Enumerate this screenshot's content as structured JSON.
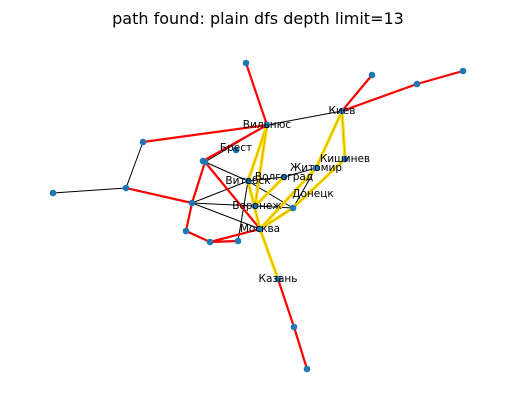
{
  "title": "path found: plain dfs depth limit=13",
  "colors": {
    "node": "#1f77b4",
    "edge": "#000000",
    "path_edge": "#ff0000",
    "highlight_edge": "#ffdd00",
    "background": "#ffffff"
  },
  "nodes": [
    {
      "id": "vilnius",
      "label": "Вильнюс"
    },
    {
      "id": "brest",
      "label": "Брест"
    },
    {
      "id": "vitebsk",
      "label": "Витебск"
    },
    {
      "id": "volgograd",
      "label": "Волгоград"
    },
    {
      "id": "voronezh",
      "label": "Воронеж"
    },
    {
      "id": "moskva",
      "label": "Москва"
    },
    {
      "id": "kazan",
      "label": "Казань"
    },
    {
      "id": "kiev",
      "label": "Киев"
    },
    {
      "id": "kishinev",
      "label": "Кишинев"
    },
    {
      "id": "zhitomir",
      "label": "Житомир"
    },
    {
      "id": "donetsk",
      "label": "Донецк"
    },
    {
      "id": "n1",
      "label": ""
    },
    {
      "id": "n2",
      "label": ""
    },
    {
      "id": "n3",
      "label": ""
    },
    {
      "id": "n4",
      "label": ""
    },
    {
      "id": "n5",
      "label": ""
    },
    {
      "id": "n6",
      "label": ""
    },
    {
      "id": "n7",
      "label": ""
    },
    {
      "id": "n8",
      "label": ""
    },
    {
      "id": "n9",
      "label": ""
    },
    {
      "id": "n10",
      "label": ""
    },
    {
      "id": "n11",
      "label": ""
    },
    {
      "id": "n12",
      "label": ""
    },
    {
      "id": "n13",
      "label": ""
    },
    {
      "id": "n14",
      "label": ""
    },
    {
      "id": "n15",
      "label": ""
    }
  ],
  "edges": [
    {
      "from": "n3",
      "to": "n2",
      "kind": "normal"
    },
    {
      "from": "n2",
      "to": "n1",
      "kind": "normal"
    },
    {
      "from": "n2",
      "to": "n5",
      "kind": "path"
    },
    {
      "from": "n1",
      "to": "vilnius",
      "kind": "path"
    },
    {
      "from": "vilnius",
      "to": "n4",
      "kind": "path"
    },
    {
      "from": "vilnius",
      "to": "kiev",
      "kind": "normal"
    },
    {
      "from": "kiev",
      "to": "n10",
      "kind": "path"
    },
    {
      "from": "kiev",
      "to": "n11",
      "kind": "path"
    },
    {
      "from": "n11",
      "to": "n12",
      "kind": "path"
    },
    {
      "from": "vilnius",
      "to": "n6",
      "kind": "normal"
    },
    {
      "from": "n6",
      "to": "n5",
      "kind": "path"
    },
    {
      "from": "n5",
      "to": "n7",
      "kind": "path"
    },
    {
      "from": "n7",
      "to": "n8",
      "kind": "path"
    },
    {
      "from": "n8",
      "to": "n9",
      "kind": "path"
    },
    {
      "from": "n8",
      "to": "moskva",
      "kind": "path"
    },
    {
      "from": "n5",
      "to": "vitebsk",
      "kind": "normal"
    },
    {
      "from": "n5",
      "to": "voronezh",
      "kind": "normal"
    },
    {
      "from": "n5",
      "to": "moskva",
      "kind": "normal"
    },
    {
      "from": "n6",
      "to": "moskva",
      "kind": "path"
    },
    {
      "from": "n6",
      "to": "vitebsk",
      "kind": "normal"
    },
    {
      "from": "vilnius",
      "to": "vitebsk",
      "kind": "highlight"
    },
    {
      "from": "vilnius",
      "to": "voronezh",
      "kind": "highlight"
    },
    {
      "from": "vitebsk",
      "to": "moskva",
      "kind": "highlight"
    },
    {
      "from": "vitebsk",
      "to": "volgograd",
      "kind": "normal"
    },
    {
      "from": "vitebsk",
      "to": "n9",
      "kind": "normal"
    },
    {
      "from": "vitebsk",
      "to": "donetsk",
      "kind": "normal"
    },
    {
      "from": "volgograd",
      "to": "zhitomir",
      "kind": "normal"
    },
    {
      "from": "volgograd",
      "to": "voronezh",
      "kind": "highlight"
    },
    {
      "from": "zhitomir",
      "to": "kiev",
      "kind": "highlight"
    },
    {
      "from": "zhitomir",
      "to": "donetsk",
      "kind": "normal"
    },
    {
      "from": "zhitomir",
      "to": "moskva",
      "kind": "highlight"
    },
    {
      "from": "kiev",
      "to": "kishinev",
      "kind": "highlight"
    },
    {
      "from": "kishinev",
      "to": "donetsk",
      "kind": "highlight"
    },
    {
      "from": "donetsk",
      "to": "moskva",
      "kind": "highlight"
    },
    {
      "from": "voronezh",
      "to": "donetsk",
      "kind": "normal"
    },
    {
      "from": "moskva",
      "to": "kazan",
      "kind": "highlight"
    },
    {
      "from": "kazan",
      "to": "n13",
      "kind": "path"
    },
    {
      "from": "n13",
      "to": "n14",
      "kind": "path"
    },
    {
      "from": "n15",
      "to": "vilnius",
      "kind": "path"
    }
  ]
}
